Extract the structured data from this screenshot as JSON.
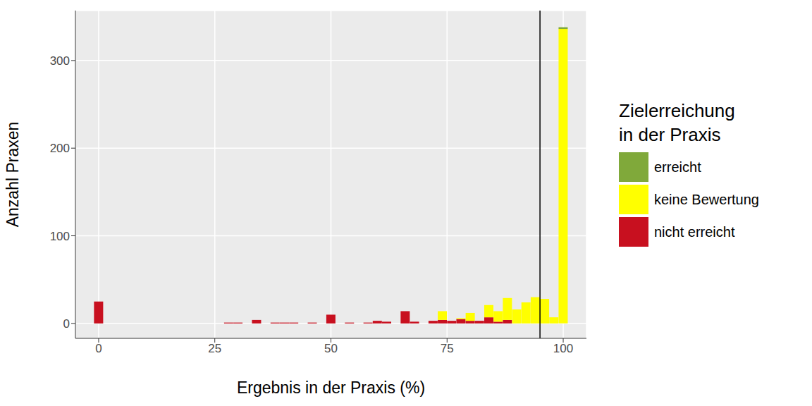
{
  "chart_data": {
    "type": "histogram",
    "x_label": "Ergebnis in der Praxis (%)",
    "y_label": "Anzahl Praxen",
    "legend_title": "Zielerreichung\nin der Praxis",
    "bins": [
      -1,
      1,
      3,
      5,
      7,
      9,
      11,
      13,
      15,
      17,
      19,
      21,
      23,
      25,
      27,
      29,
      31,
      33,
      35,
      37,
      39,
      41,
      43,
      45,
      47,
      49,
      51,
      53,
      55,
      57,
      59,
      61,
      63,
      65,
      67,
      69,
      71,
      73,
      75,
      77,
      79,
      81,
      83,
      85,
      87,
      89,
      91,
      93,
      95,
      97,
      99,
      101
    ],
    "series": [
      {
        "name": "erreicht",
        "color": "#80A93A",
        "values": [
          0,
          0,
          0,
          0,
          0,
          0,
          0,
          0,
          0,
          0,
          0,
          0,
          0,
          0,
          0,
          0,
          0,
          0,
          0,
          0,
          0,
          0,
          0,
          0,
          0,
          0,
          0,
          0,
          0,
          0,
          0,
          0,
          0,
          0,
          0,
          0,
          0,
          0,
          0,
          0,
          0,
          0,
          0,
          0,
          0,
          0,
          0,
          0,
          0,
          0,
          2
        ]
      },
      {
        "name": "keine Bewertung",
        "color": "#FFFF00",
        "values": [
          0,
          0,
          0,
          0,
          0,
          0,
          0,
          0,
          0,
          0,
          0,
          0,
          0,
          0,
          0,
          0,
          0,
          0,
          0,
          0,
          0,
          0,
          0,
          0,
          0,
          0,
          0,
          0,
          0,
          0,
          0,
          0,
          0,
          0,
          0,
          0,
          0,
          10,
          0,
          1,
          9,
          0,
          14,
          12,
          25,
          16,
          24,
          30,
          28,
          7,
          336
        ]
      },
      {
        "name": "nicht erreicht",
        "color": "#C8101F",
        "values": [
          25,
          0,
          0,
          0,
          0,
          0,
          0,
          0,
          0,
          0,
          0,
          0,
          0,
          0,
          1,
          1,
          0,
          4,
          0,
          1,
          1,
          1,
          0,
          1,
          0,
          10,
          0,
          1,
          0,
          1,
          3,
          2,
          0,
          14,
          2,
          0,
          3,
          4,
          3,
          5,
          3,
          3,
          7,
          2,
          4,
          0,
          0,
          0,
          0,
          0,
          0
        ]
      }
    ],
    "target": 95,
    "xlim": [
      -5,
      105
    ],
    "xticks": [
      0,
      25,
      50,
      75,
      100
    ],
    "ylim": [
      -17,
      357
    ],
    "yticks": [
      0,
      100,
      200,
      300
    ],
    "stacked": true,
    "grid": true
  }
}
